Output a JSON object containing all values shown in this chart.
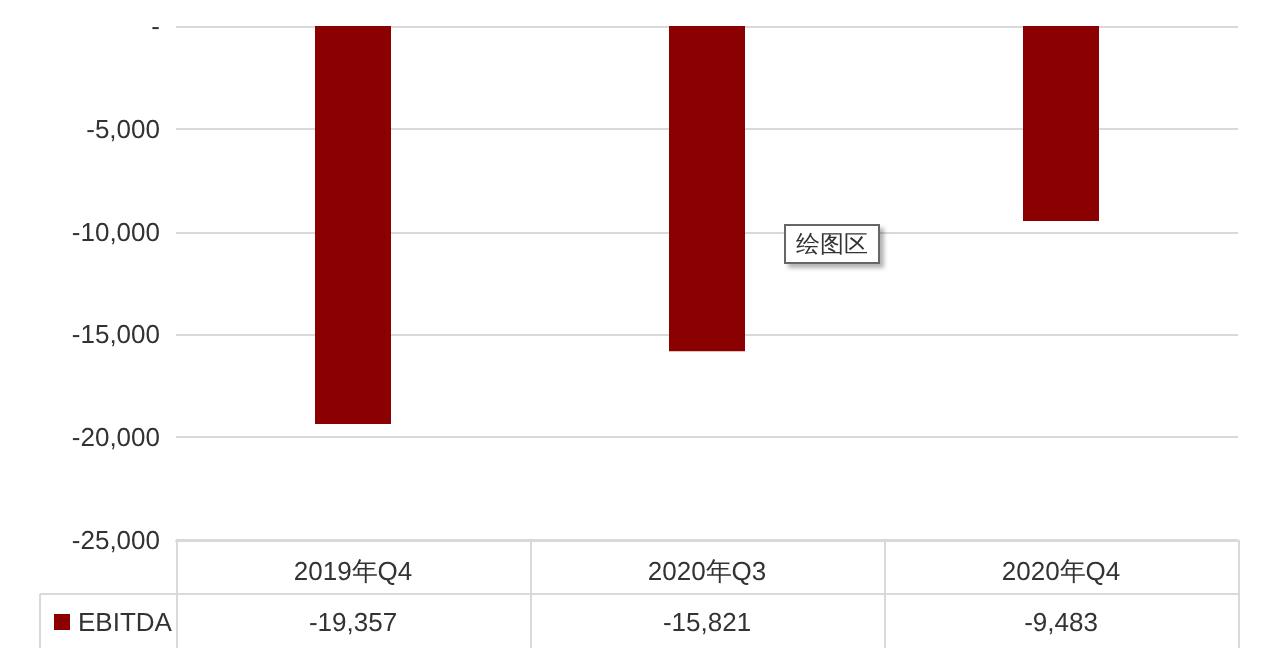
{
  "chart_data": {
    "type": "bar",
    "categories": [
      "2019年Q4",
      "2020年Q3",
      "2020年Q4"
    ],
    "series": [
      {
        "name": "EBITDA",
        "color": "#8b0000",
        "values": [
          -19357,
          -15821,
          -9483
        ],
        "value_labels": [
          "-19,357",
          "-15,821",
          "-9,483"
        ]
      }
    ],
    "ylim": [
      -25000,
      0
    ],
    "yticks": [
      {
        "value": -25000,
        "label": "-25,000"
      },
      {
        "value": -20000,
        "label": "-20,000"
      },
      {
        "value": -15000,
        "label": "-15,000"
      },
      {
        "value": -10000,
        "label": "-10,000"
      },
      {
        "value": -5000,
        "label": "-5,000"
      },
      {
        "value": 0,
        "label": "-"
      }
    ],
    "grid": "y",
    "legend": "bottom",
    "annotations": [
      "绘图区"
    ]
  }
}
